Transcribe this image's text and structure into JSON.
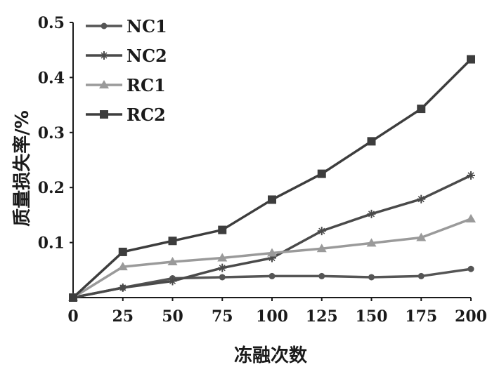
{
  "chart_data": {
    "type": "line",
    "xlabel": "冻融次数",
    "ylabel": "质量损失率/%",
    "x": [
      0,
      25,
      50,
      75,
      100,
      125,
      150,
      175,
      200
    ],
    "xticks": [
      "0",
      "25",
      "50",
      "75",
      "100",
      "125",
      "150",
      "175",
      "200"
    ],
    "yticks": [
      "0.1",
      "0.2",
      "0.3",
      "0.4",
      "0.5"
    ],
    "ylim": [
      0,
      0.5
    ],
    "xlim": [
      0,
      200
    ],
    "grid": false,
    "legend_position": "top-left",
    "series": [
      {
        "name": "NC1",
        "marker": "circle",
        "color": "#555555",
        "values": [
          0.0,
          0.018,
          0.035,
          0.037,
          0.039,
          0.039,
          0.037,
          0.039,
          0.052
        ]
      },
      {
        "name": "NC2",
        "marker": "star",
        "color": "#4a4a4a",
        "values": [
          0.0,
          0.018,
          0.03,
          0.054,
          0.072,
          0.121,
          0.152,
          0.179,
          0.222
        ]
      },
      {
        "name": "RC1",
        "marker": "triangle",
        "color": "#9a9a9a",
        "values": [
          0.0,
          0.056,
          0.065,
          0.072,
          0.081,
          0.089,
          0.099,
          0.109,
          0.143
        ]
      },
      {
        "name": "RC2",
        "marker": "square",
        "color": "#3d3d3d",
        "values": [
          0.0,
          0.083,
          0.103,
          0.123,
          0.178,
          0.225,
          0.284,
          0.343,
          0.433
        ]
      }
    ]
  }
}
